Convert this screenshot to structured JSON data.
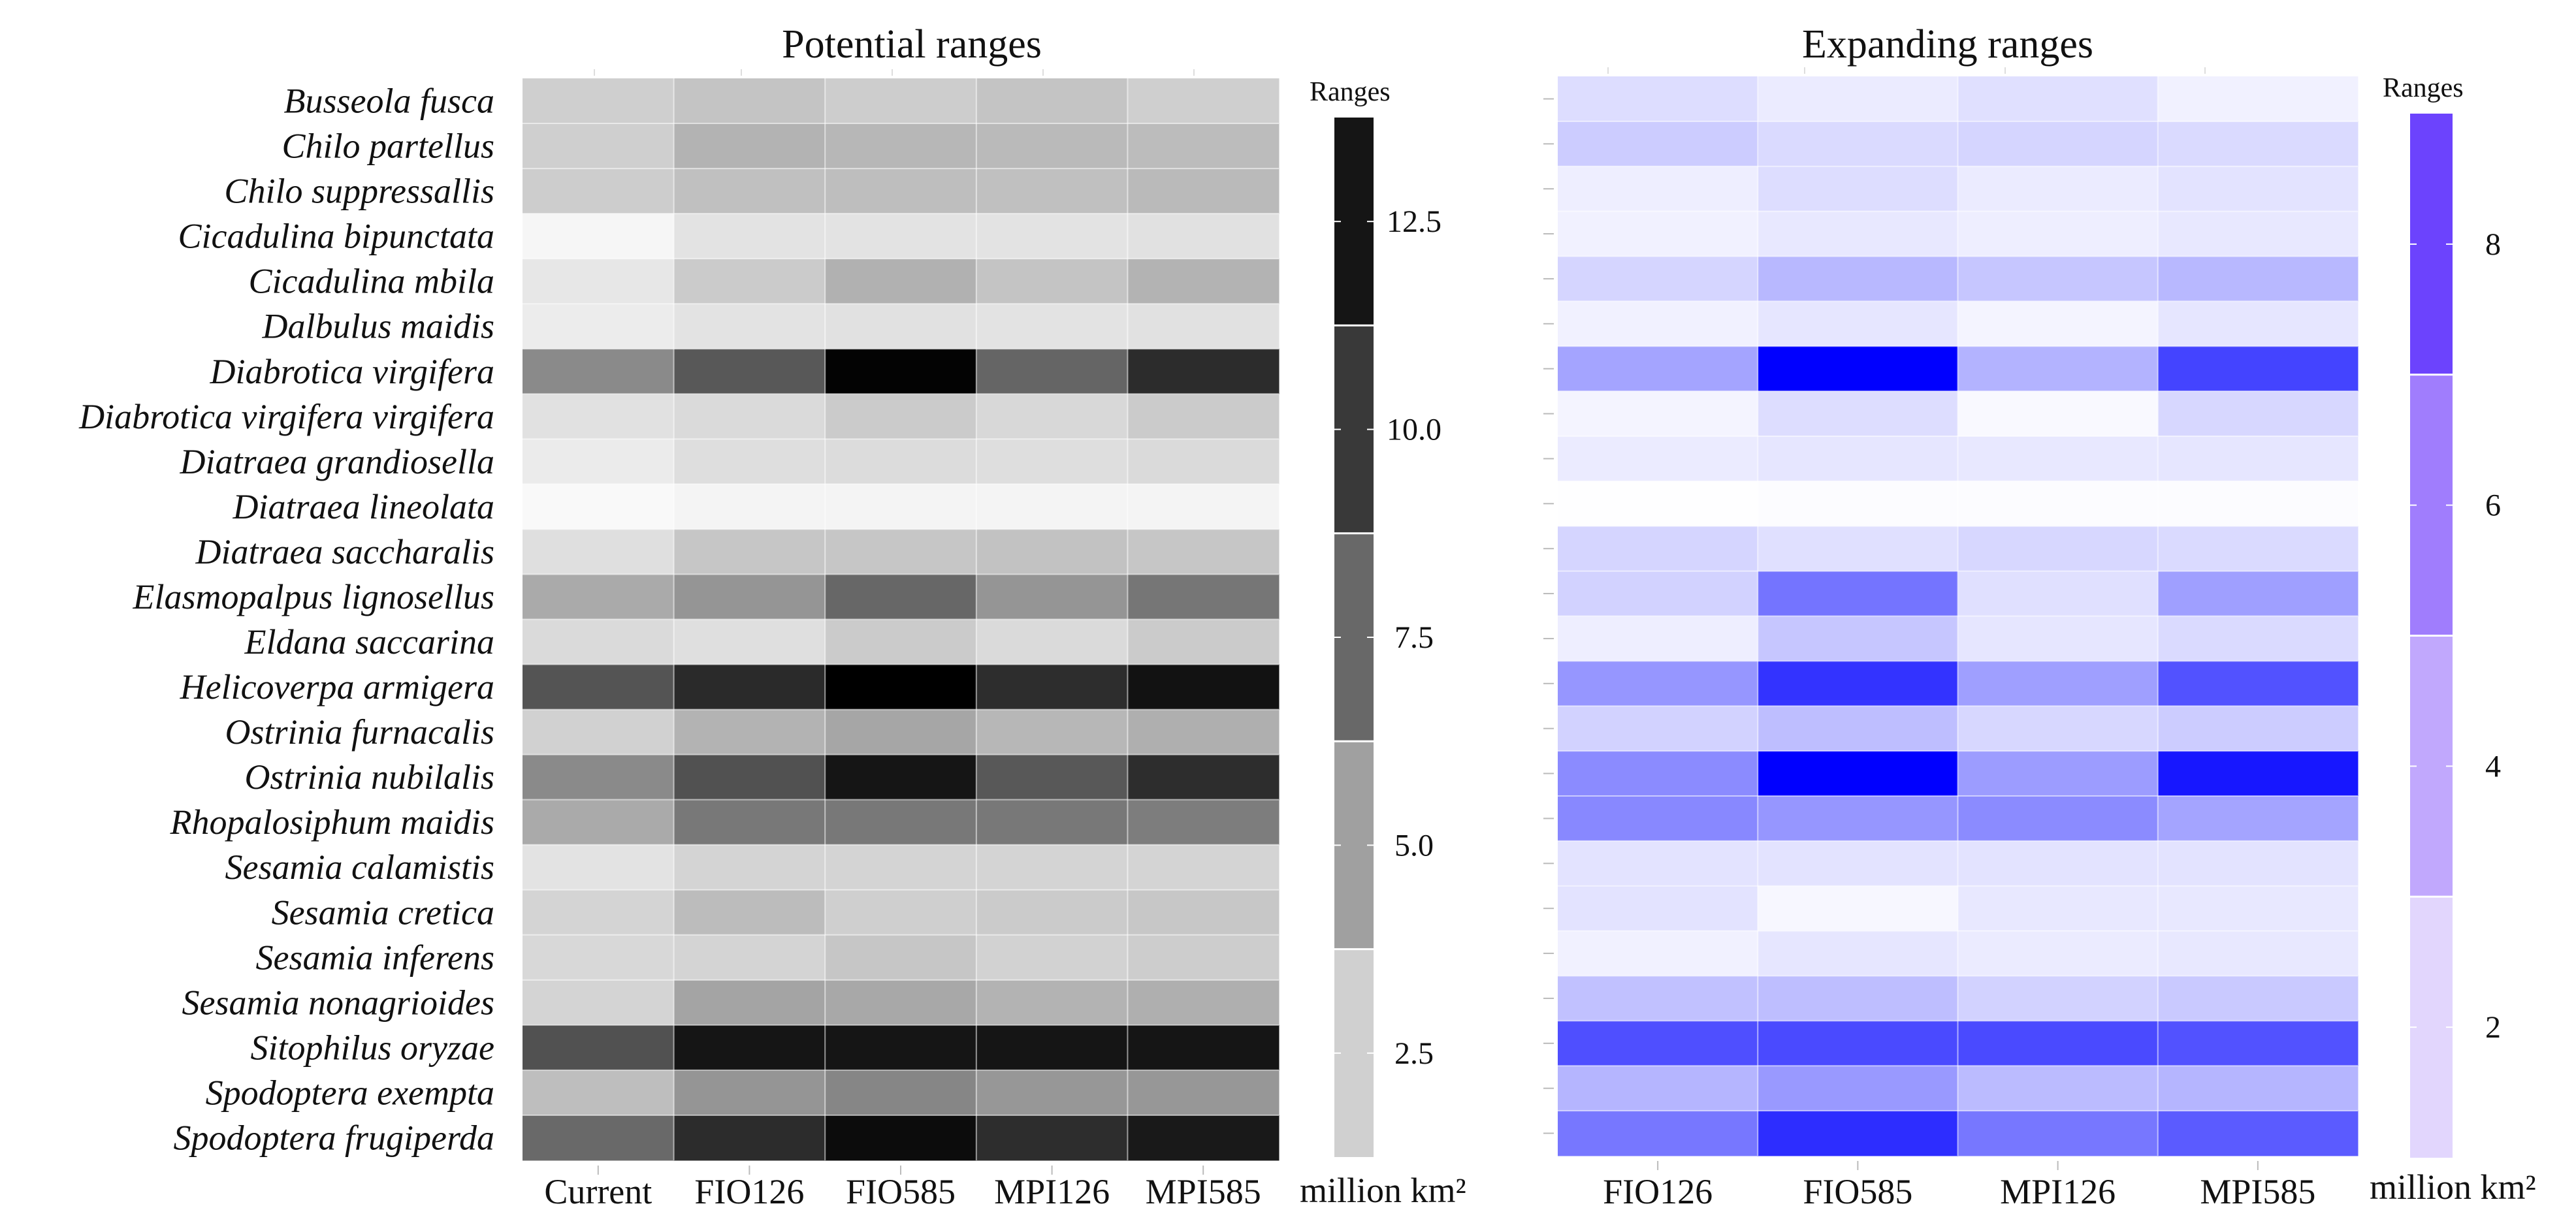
{
  "chart_data": [
    {
      "type": "heatmap",
      "title": "Potential ranges",
      "x_categories": [
        "Current",
        "FIO126",
        "FIO585",
        "MPI126",
        "MPI585"
      ],
      "y_categories": [
        "Busseola fusca",
        "Chilo partellus",
        "Chilo suppressallis",
        "Cicadulina bipunctata",
        "Cicadulina mbila",
        "Dalbulus maidis",
        "Diabrotica virgifera",
        "Diabrotica virgifera virgifera",
        "Diatraea grandiosella",
        "Diatraea lineolata",
        "Diatraea saccharalis",
        "Elasmopalpus lignosellus",
        "Eldana saccarina",
        "Helicoverpa armigera",
        "Ostrinia furnacalis",
        "Ostrinia nubilalis",
        "Rhopalosiphum maidis",
        "Sesamia calamistis",
        "Sesamia cretica",
        "Sesamia inferens",
        "Sesamia nonagrioides",
        "Sitophilus oryzae",
        "Spodoptera exempta",
        "Spodoptera frugiperda"
      ],
      "values": [
        [
          2.6,
          3.2,
          2.7,
          3.2,
          2.6
        ],
        [
          2.6,
          4.1,
          3.9,
          3.7,
          3.6
        ],
        [
          2.7,
          3.4,
          3.5,
          3.4,
          3.7
        ],
        [
          0.5,
          1.5,
          1.5,
          1.5,
          1.6
        ],
        [
          1.3,
          2.8,
          4.2,
          3.2,
          4.1
        ],
        [
          1.0,
          1.5,
          1.6,
          1.5,
          1.6
        ],
        [
          6.3,
          9.0,
          13.6,
          8.3,
          11.4
        ],
        [
          1.6,
          2.0,
          2.8,
          2.1,
          2.8
        ],
        [
          1.1,
          1.8,
          1.9,
          1.8,
          2.0
        ],
        [
          0.3,
          0.6,
          0.6,
          0.6,
          0.6
        ],
        [
          1.7,
          3.1,
          3.1,
          3.3,
          3.1
        ],
        [
          4.6,
          5.7,
          8.2,
          5.7,
          7.4
        ],
        [
          2.0,
          1.7,
          2.8,
          2.0,
          2.8
        ],
        [
          9.2,
          11.5,
          14.0,
          11.3,
          12.8
        ],
        [
          2.5,
          4.1,
          4.8,
          3.9,
          4.3
        ],
        [
          6.3,
          9.4,
          12.6,
          9.0,
          11.3
        ],
        [
          4.6,
          7.3,
          7.3,
          7.3,
          7.0
        ],
        [
          1.5,
          2.3,
          2.3,
          2.3,
          2.3
        ],
        [
          2.3,
          3.6,
          2.6,
          2.8,
          3.0
        ],
        [
          2.1,
          2.3,
          3.1,
          2.4,
          2.7
        ],
        [
          2.3,
          4.9,
          4.7,
          4.1,
          4.3
        ],
        [
          9.4,
          12.6,
          12.6,
          12.6,
          12.6
        ],
        [
          3.5,
          5.7,
          6.5,
          5.6,
          5.6
        ],
        [
          8.1,
          11.4,
          13.1,
          11.3,
          12.4
        ]
      ],
      "colorbar": {
        "title": "Ranges",
        "unit": "million km²",
        "ticks": [
          2.5,
          5.0,
          7.5,
          10.0,
          12.5
        ],
        "tick_labels": [
          "2.5",
          "5.0",
          "7.5",
          "10.0",
          "12.5"
        ],
        "range": [
          1.25,
          13.75
        ],
        "bins": 5,
        "colors": [
          "#d0d0d0",
          "#a0a0a0",
          "#686868",
          "#393939",
          "#151515"
        ]
      },
      "low_color": "#ffffff",
      "high_color": "#000000",
      "grid": false
    },
    {
      "type": "heatmap",
      "title": "Expanding ranges",
      "x_categories": [
        "FIO126",
        "FIO585",
        "MPI126",
        "MPI585"
      ],
      "y_categories": [
        "Busseola fusca",
        "Chilo partellus",
        "Chilo suppressallis",
        "Cicadulina bipunctata",
        "Cicadulina mbila",
        "Dalbulus maidis",
        "Diabrotica virgifera",
        "Diabrotica virgifera virgifera",
        "Diatraea grandiosella",
        "Diatraea lineolata",
        "Diatraea saccharalis",
        "Elasmopalpus lignosellus",
        "Eldana saccarina",
        "Helicoverpa armigera",
        "Ostrinia furnacalis",
        "Ostrinia nubilalis",
        "Rhopalosiphum maidis",
        "Sesamia calamistis",
        "Sesamia cretica",
        "Sesamia inferens",
        "Sesamia nonagrioides",
        "Sitophilus oryzae",
        "Spodoptera exempta",
        "Spodoptera frugiperda"
      ],
      "values": [
        [
          1.2,
          0.7,
          1.1,
          0.5
        ],
        [
          1.8,
          1.3,
          1.5,
          1.3
        ],
        [
          0.6,
          1.2,
          0.7,
          1.0
        ],
        [
          0.5,
          0.8,
          0.6,
          0.8
        ],
        [
          1.5,
          2.5,
          2.0,
          2.5
        ],
        [
          0.5,
          0.9,
          0.4,
          0.9
        ],
        [
          3.2,
          10.0,
          2.7,
          6.6
        ],
        [
          0.4,
          1.2,
          0.2,
          1.4
        ],
        [
          0.7,
          0.9,
          0.8,
          0.9
        ],
        [
          0.05,
          0.1,
          0.1,
          0.1
        ],
        [
          1.5,
          1.1,
          1.4,
          1.3
        ],
        [
          1.6,
          4.9,
          1.1,
          3.4
        ],
        [
          0.6,
          2.0,
          0.9,
          1.3
        ],
        [
          3.7,
          7.2,
          3.4,
          6.1
        ],
        [
          1.6,
          2.3,
          1.4,
          1.8
        ],
        [
          4.1,
          9.2,
          3.5,
          8.2
        ],
        [
          4.2,
          3.7,
          4.1,
          3.2
        ],
        [
          1.0,
          1.0,
          1.0,
          1.0
        ],
        [
          1.0,
          0.3,
          0.8,
          0.8
        ],
        [
          0.5,
          0.9,
          0.7,
          0.8
        ],
        [
          2.2,
          2.3,
          1.6,
          1.9
        ],
        [
          6.2,
          6.4,
          6.4,
          6.1
        ],
        [
          2.6,
          3.6,
          2.4,
          2.6
        ],
        [
          4.8,
          7.4,
          4.8,
          5.8
        ]
      ],
      "colorbar": {
        "title": "Ranges",
        "unit": "million km²",
        "ticks": [
          2,
          4,
          6,
          8
        ],
        "tick_labels": [
          "2",
          "4",
          "6",
          "8"
        ],
        "range": [
          1,
          9
        ],
        "bins": 4,
        "colors": [
          "#e2d6fd",
          "#c1a8fd",
          "#a07dfd",
          "#6c43fd"
        ]
      },
      "low_color": "#ffffff",
      "high_color": "#0000ff",
      "grid": false
    }
  ]
}
